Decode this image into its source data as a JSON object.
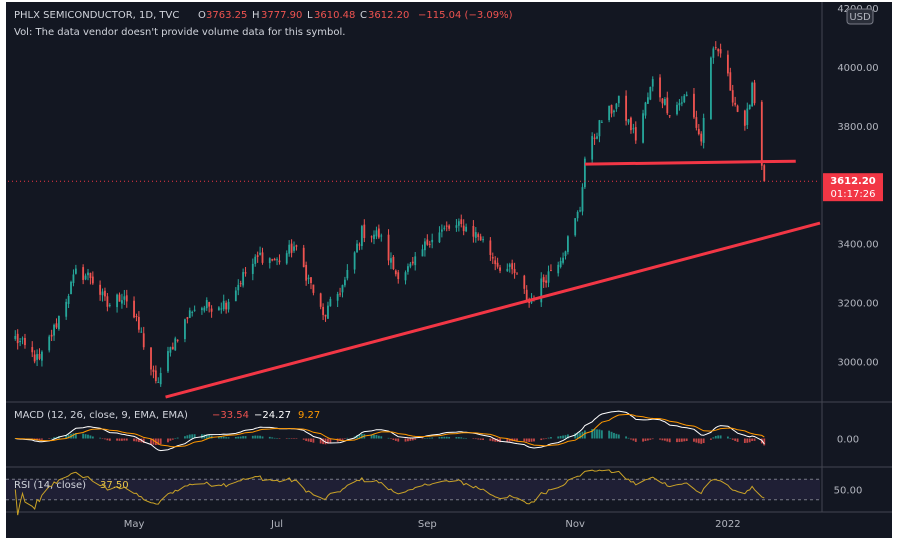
{
  "header": {
    "symbol": "PHLX SEMICONDUCTOR, 1D, TVC",
    "o_label": "O",
    "o_value": "3763.25",
    "h_label": "H",
    "h_value": "3777.90",
    "l_label": "L",
    "l_value": "3610.48",
    "c_label": "C",
    "c_value": "3612.20",
    "change": "−115.04 (−3.09%)",
    "vol_note": "Vol: The data vendor doesn't provide volume data for this symbol."
  },
  "currency_badge": "USD",
  "last_price": {
    "value": "3612.20",
    "countdown": "01:17:26"
  },
  "colors": {
    "background": "#131722",
    "up": "#26a69a",
    "down": "#ef5350",
    "trendline": "#f23645",
    "macd_line": "#ffffff",
    "signal_line": "#ff9800",
    "rsi_line": "#c9a227",
    "text": "#d1d4dc",
    "grid": "#2a2e39"
  },
  "chart_data": [
    {
      "type": "candlestick",
      "title": "PHLX SEMICONDUCTOR",
      "x_tick_labels": [
        "May",
        "Jul",
        "Sep",
        "Nov",
        "2022"
      ],
      "y_tick_labels": [
        "4200.00",
        "4000.00",
        "3800.00",
        "3400.00",
        "3200.00",
        "3000.00"
      ],
      "ylim": [
        2870,
        4220
      ],
      "grid": false,
      "close_anchors": [
        {
          "date": "2021-03-15",
          "close": 3080
        },
        {
          "date": "2021-03-25",
          "close": 3000
        },
        {
          "date": "2021-04-01",
          "close": 3130
        },
        {
          "date": "2021-04-09",
          "close": 3300
        },
        {
          "date": "2021-04-15",
          "close": 3290
        },
        {
          "date": "2021-04-22",
          "close": 3190
        },
        {
          "date": "2021-04-29",
          "close": 3230
        },
        {
          "date": "2021-05-06",
          "close": 3090
        },
        {
          "date": "2021-05-12",
          "close": 2920
        },
        {
          "date": "2021-05-19",
          "close": 3060
        },
        {
          "date": "2021-05-27",
          "close": 3180
        },
        {
          "date": "2021-06-03",
          "close": 3190
        },
        {
          "date": "2021-06-10",
          "close": 3200
        },
        {
          "date": "2021-06-17",
          "close": 3290
        },
        {
          "date": "2021-06-24",
          "close": 3360
        },
        {
          "date": "2021-07-01",
          "close": 3340
        },
        {
          "date": "2021-07-08",
          "close": 3390
        },
        {
          "date": "2021-07-15",
          "close": 3260
        },
        {
          "date": "2021-07-20",
          "close": 3150
        },
        {
          "date": "2021-07-29",
          "close": 3270
        },
        {
          "date": "2021-08-05",
          "close": 3440
        },
        {
          "date": "2021-08-12",
          "close": 3430
        },
        {
          "date": "2021-08-19",
          "close": 3300
        },
        {
          "date": "2021-08-26",
          "close": 3320
        },
        {
          "date": "2021-09-02",
          "close": 3420
        },
        {
          "date": "2021-09-09",
          "close": 3450
        },
        {
          "date": "2021-09-16",
          "close": 3460
        },
        {
          "date": "2021-09-23",
          "close": 3420
        },
        {
          "date": "2021-09-30",
          "close": 3330
        },
        {
          "date": "2021-10-07",
          "close": 3300
        },
        {
          "date": "2021-10-13",
          "close": 3200
        },
        {
          "date": "2021-10-20",
          "close": 3290
        },
        {
          "date": "2021-10-27",
          "close": 3370
        },
        {
          "date": "2021-11-03",
          "close": 3520
        },
        {
          "date": "2021-11-05",
          "close": 3690
        },
        {
          "date": "2021-11-12",
          "close": 3820
        },
        {
          "date": "2021-11-19",
          "close": 3880
        },
        {
          "date": "2021-11-26",
          "close": 3760
        },
        {
          "date": "2021-12-03",
          "close": 3950
        },
        {
          "date": "2021-12-10",
          "close": 3850
        },
        {
          "date": "2021-12-17",
          "close": 3900
        },
        {
          "date": "2021-12-23",
          "close": 3750
        },
        {
          "date": "2021-12-27",
          "close": 4040
        },
        {
          "date": "2021-12-31",
          "close": 4050
        },
        {
          "date": "2022-01-05",
          "close": 3900
        },
        {
          "date": "2022-01-10",
          "close": 3780
        },
        {
          "date": "2022-01-13",
          "close": 3950
        },
        {
          "date": "2022-01-18",
          "close": 3612.2
        }
      ],
      "last_price": 3612.2,
      "support_line": {
        "from": {
          "date": "2021-11-05",
          "value": 3670
        },
        "to": {
          "date": "2022-01-31",
          "value": 3680
        }
      },
      "trend_line": {
        "from": {
          "date": "2021-05-16",
          "value": 2880
        },
        "to": {
          "date": "2022-02-10",
          "value": 3470
        }
      }
    },
    {
      "type": "line",
      "title": "MACD (12, 26, close, 9, EMA, EMA)",
      "legend": [
        {
          "name": "histogram",
          "value": "−33.54"
        },
        {
          "name": "macd",
          "value": "−24.27"
        },
        {
          "name": "signal",
          "value": "9.27"
        }
      ],
      "y_tick_labels": [
        "0.00"
      ],
      "series": [
        {
          "name": "macd",
          "color": "#ffffff",
          "shape": "macd-line"
        },
        {
          "name": "signal",
          "color": "#ff9800",
          "shape": "signal-line"
        },
        {
          "name": "histogram",
          "color": "#26a69a / #ef5350",
          "shape": "bars"
        }
      ]
    },
    {
      "type": "line",
      "title": "RSI (14, close)",
      "legend_value": "37.50",
      "y_tick_labels": [
        "50.00"
      ],
      "band": [
        30,
        70
      ],
      "series": [
        {
          "name": "RSI",
          "color": "#c9a227"
        }
      ]
    }
  ]
}
